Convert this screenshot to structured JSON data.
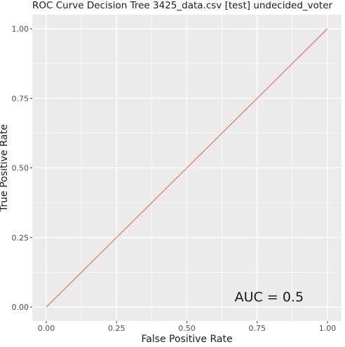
{
  "chart_data": {
    "type": "line",
    "title": "ROC Curve Decision Tree 3425_data.csv [test] undecided_voter",
    "xlabel": "False Positive Rate",
    "ylabel": "True Positive Rate",
    "xlim": [
      0,
      1
    ],
    "ylim": [
      0,
      1
    ],
    "x_ticks": [
      {
        "value": 0,
        "label": "0.00"
      },
      {
        "value": 0.25,
        "label": "0.25"
      },
      {
        "value": 0.5,
        "label": "0.50"
      },
      {
        "value": 0.75,
        "label": "0.75"
      },
      {
        "value": 1,
        "label": "1.00"
      }
    ],
    "y_ticks": [
      {
        "value": 0,
        "label": "0.00"
      },
      {
        "value": 0.25,
        "label": "0.25"
      },
      {
        "value": 0.5,
        "label": "0.50"
      },
      {
        "value": 0.75,
        "label": "0.75"
      },
      {
        "value": 1,
        "label": "1.00"
      }
    ],
    "grid": true,
    "series": [
      {
        "color": "#e07a6f",
        "points": [
          [
            0,
            0
          ],
          [
            1,
            1
          ]
        ]
      }
    ],
    "annotation": {
      "text": "AUC = 0.5",
      "x": 0.67,
      "y": 0.02
    },
    "panel_background": "#ebebeb",
    "grid_color": "#ffffff"
  }
}
